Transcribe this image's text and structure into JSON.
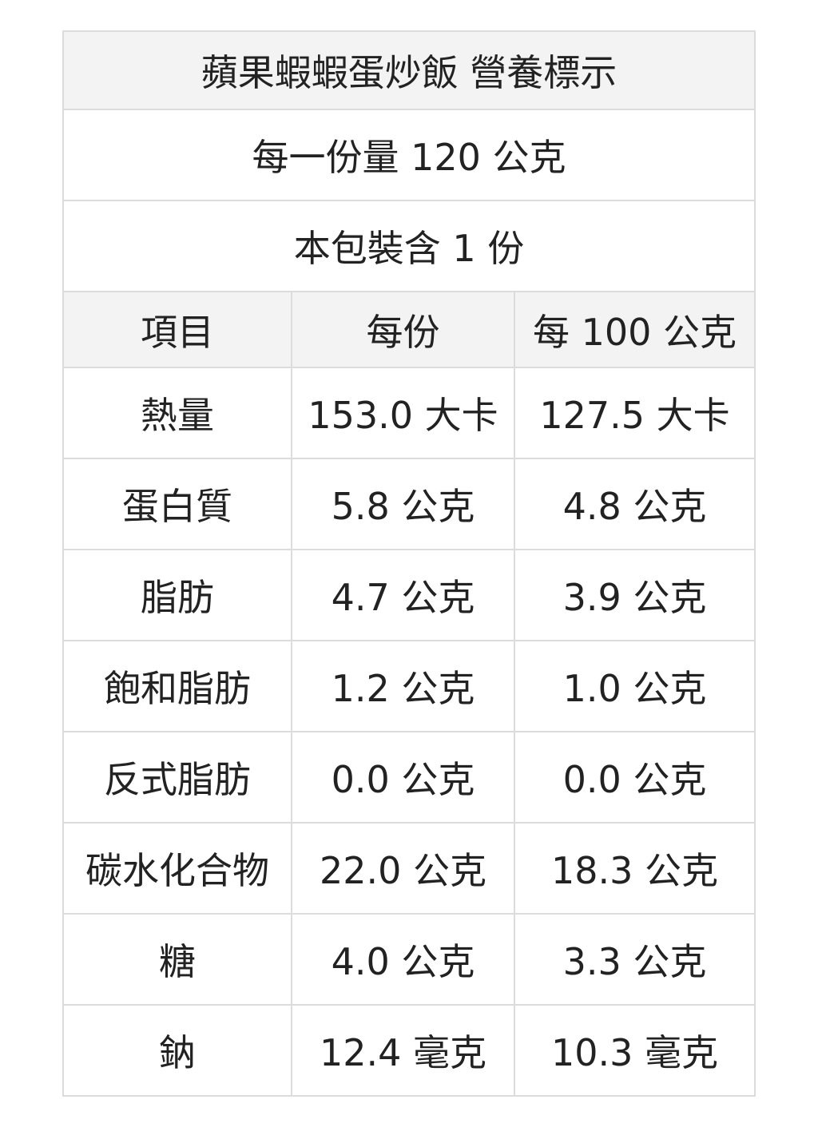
{
  "title": "蘋果蝦蝦蛋炒飯 營養標示",
  "serving_size": "每一份量 120 公克",
  "servings_per_package": "本包裝含 1 份",
  "columns": [
    "項目",
    "每份",
    "每 100 公克"
  ],
  "rows": [
    {
      "item": "熱量",
      "per_serving": "153.0 大卡",
      "per_100g": "127.5 大卡"
    },
    {
      "item": "蛋白質",
      "per_serving": "5.8 公克",
      "per_100g": "4.8 公克"
    },
    {
      "item": "脂肪",
      "per_serving": "4.7 公克",
      "per_100g": "3.9 公克"
    },
    {
      "item": "飽和脂肪",
      "per_serving": "1.2 公克",
      "per_100g": "1.0 公克"
    },
    {
      "item": "反式脂肪",
      "per_serving": "0.0 公克",
      "per_100g": "0.0 公克"
    },
    {
      "item": "碳水化合物",
      "per_serving": "22.0 公克",
      "per_100g": "18.3 公克"
    },
    {
      "item": "糖",
      "per_serving": "4.0 公克",
      "per_100g": "3.3 公克"
    },
    {
      "item": "鈉",
      "per_serving": "12.4 毫克",
      "per_100g": "10.3 毫克"
    }
  ]
}
